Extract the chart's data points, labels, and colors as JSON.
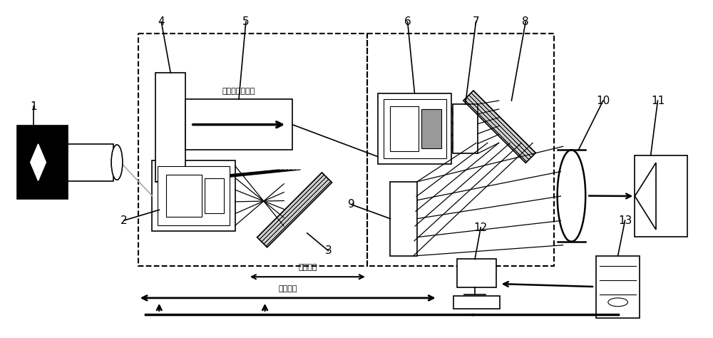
{
  "bg_color": "#ffffff",
  "line_color": "#000000",
  "text_chusheguang": "出射光亮度可控",
  "text_weitu": "位图同步",
  "text_shijian": "时间同步",
  "labels": [
    "1",
    "2",
    "3",
    "4",
    "5",
    "6",
    "7",
    "8",
    "9",
    "10",
    "11",
    "12",
    "13"
  ]
}
